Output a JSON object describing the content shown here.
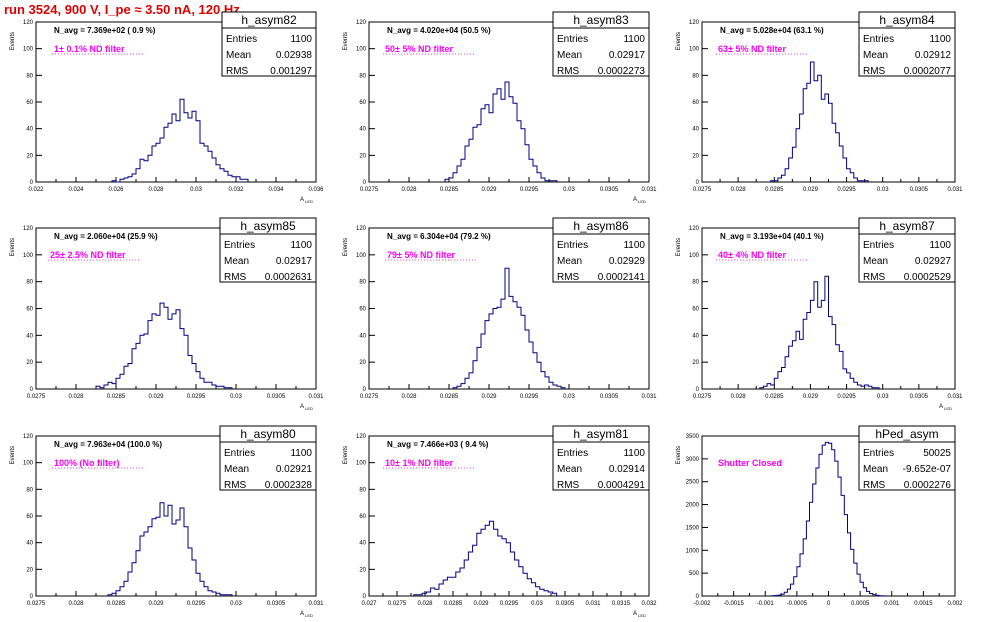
{
  "header": {
    "title": "run 3524,   900 V, I_pe ≈ 3.50 nA, 120 Hz"
  },
  "colors": {
    "title": "#e00000",
    "annotation": "#ff00ff",
    "histogram": "#000080",
    "axis": "#000000"
  },
  "chart_data": [
    {
      "type": "bar",
      "name": "h_asym82",
      "title": "h_asym82",
      "stats": {
        "entries": "1100",
        "mean": "0.02938",
        "rms": "0.001297"
      },
      "navg": "N_avg = 7.369e+02 ( 0.9 %)",
      "annotation": "1± 0.1% ND filter",
      "xlabel": "A_{LED}",
      "ylabel": "Events",
      "xlim": [
        0.022,
        0.036
      ],
      "ylim": [
        0,
        120
      ],
      "xticks": [
        "0.022",
        "0.024",
        "0.026",
        "0.028",
        "0.03",
        "0.032",
        "0.034",
        "0.036"
      ],
      "yticks": [
        "0",
        "20",
        "40",
        "60",
        "80",
        "100",
        "120"
      ],
      "bin_edges": [
        0.0258,
        0.0326
      ],
      "values": [
        1,
        0,
        2,
        3,
        4,
        6,
        10,
        17,
        16,
        20,
        27,
        29,
        33,
        41,
        44,
        51,
        46,
        62,
        52,
        48,
        53,
        46,
        29,
        27,
        23,
        18,
        13,
        10,
        8,
        5,
        4,
        4,
        2,
        2
      ]
    },
    {
      "type": "bar",
      "name": "h_asym83",
      "title": "h_asym83",
      "stats": {
        "entries": "1100",
        "mean": "0.02917",
        "rms": "0.0002273"
      },
      "navg": "N_avg = 4.020e+04 (50.5 %)",
      "annotation": "50± 5% ND filter",
      "xlabel": "A_{LED}",
      "ylabel": "Events",
      "xlim": [
        0.0275,
        0.031
      ],
      "ylim": [
        0,
        120
      ],
      "xticks": [
        "0.0275",
        "0.028",
        "0.0285",
        "0.029",
        "0.0295",
        "0.03",
        "0.0305",
        "0.031"
      ],
      "yticks": [
        "0",
        "20",
        "40",
        "60",
        "80",
        "100",
        "120"
      ],
      "bin_edges": [
        0.02845,
        0.02985
      ],
      "values": [
        2,
        3,
        7,
        12,
        17,
        27,
        32,
        41,
        43,
        55,
        58,
        52,
        66,
        70,
        62,
        75,
        64,
        59,
        46,
        40,
        28,
        17,
        12,
        7,
        3,
        1,
        1,
        1
      ]
    },
    {
      "type": "bar",
      "name": "h_asym84",
      "title": "h_asym84",
      "stats": {
        "entries": "1100",
        "mean": "0.02912",
        "rms": "0.0002077"
      },
      "navg": "N_avg = 5.028e+04 (63.1 %)",
      "annotation": "63± 5% ND filter",
      "xlabel": "",
      "ylabel": "Events",
      "xlim": [
        0.0275,
        0.031
      ],
      "ylim": [
        0,
        120
      ],
      "xticks": [
        "0.0275",
        "0.028",
        "0.0285",
        "0.029",
        "0.0295",
        "0.03",
        "0.0305",
        "0.031"
      ],
      "yticks": [
        "0",
        "20",
        "40",
        "60",
        "80",
        "100",
        "120"
      ],
      "bin_edges": [
        0.02845,
        0.0298
      ],
      "values": [
        1,
        1,
        3,
        5,
        10,
        18,
        26,
        40,
        51,
        70,
        74,
        90,
        76,
        80,
        62,
        66,
        59,
        44,
        37,
        27,
        18,
        10,
        7,
        3,
        1,
        1,
        1
      ]
    },
    {
      "type": "bar",
      "name": "h_asym85",
      "title": "h_asym85",
      "stats": {
        "entries": "1100",
        "mean": "0.02917",
        "rms": "0.0002631"
      },
      "navg": "N_avg = 2.060e+04 (25.9 %)",
      "annotation": "25± 2.5% ND filter",
      "xlabel": "A_{LED}",
      "ylabel": "Events",
      "xlim": [
        0.0275,
        0.031
      ],
      "ylim": [
        0,
        120
      ],
      "xticks": [
        "0.0275",
        "0.028",
        "0.0285",
        "0.029",
        "0.0295",
        "0.03",
        "0.0305",
        "0.031"
      ],
      "yticks": [
        "0",
        "20",
        "40",
        "60",
        "80",
        "100",
        "120"
      ],
      "bin_edges": [
        0.02825,
        0.02995
      ],
      "values": [
        2,
        1,
        3,
        5,
        4,
        8,
        11,
        17,
        19,
        30,
        34,
        40,
        41,
        51,
        56,
        55,
        64,
        61,
        52,
        56,
        59,
        45,
        40,
        25,
        19,
        13,
        8,
        5,
        5,
        3,
        2,
        2,
        1,
        1
      ]
    },
    {
      "type": "bar",
      "name": "h_asym86",
      "title": "h_asym86",
      "stats": {
        "entries": "1100",
        "mean": "0.02929",
        "rms": "0.0002141"
      },
      "navg": "N_avg = 6.304e+04 (79.2 %)",
      "annotation": "79± 5% ND filter",
      "xlabel": "",
      "ylabel": "Events",
      "xlim": [
        0.0275,
        0.031
      ],
      "ylim": [
        0,
        120
      ],
      "xticks": [
        "0.0275",
        "0.028",
        "0.0285",
        "0.029",
        "0.0295",
        "0.03",
        "0.0305",
        "0.031"
      ],
      "yticks": [
        "0",
        "20",
        "40",
        "60",
        "80",
        "100",
        "120"
      ],
      "bin_edges": [
        0.02855,
        0.02995
      ],
      "values": [
        1,
        2,
        4,
        8,
        12,
        21,
        31,
        41,
        51,
        56,
        60,
        61,
        67,
        90,
        69,
        65,
        61,
        55,
        44,
        35,
        27,
        20,
        13,
        9,
        5,
        3,
        2,
        1
      ]
    },
    {
      "type": "bar",
      "name": "h_asym87",
      "title": "h_asym87",
      "stats": {
        "entries": "1100",
        "mean": "0.02927",
        "rms": "0.0002529"
      },
      "navg": "N_avg = 3.193e+04 (40.1 %)",
      "annotation": "40± 4% ND filter",
      "xlabel": "A_{LED}",
      "ylabel": "Events",
      "xlim": [
        0.0275,
        0.031
      ],
      "ylim": [
        0,
        120
      ],
      "xticks": [
        "0.0275",
        "0.028",
        "0.0285",
        "0.029",
        "0.0295",
        "0.03",
        "0.0305",
        "0.031"
      ],
      "yticks": [
        "0",
        "20",
        "40",
        "60",
        "80",
        "100",
        "120"
      ],
      "bin_edges": [
        0.0283,
        0.02995
      ],
      "values": [
        1,
        2,
        4,
        3,
        8,
        13,
        16,
        24,
        32,
        36,
        43,
        37,
        52,
        57,
        66,
        80,
        61,
        66,
        84,
        54,
        48,
        33,
        28,
        15,
        12,
        8,
        5,
        3,
        2,
        3,
        2,
        1,
        1
      ]
    },
    {
      "type": "bar",
      "name": "h_asym80",
      "title": "h_asym80",
      "stats": {
        "entries": "1100",
        "mean": "0.02921",
        "rms": "0.0002328"
      },
      "navg": "N_avg = 7.963e+04 (100.0 %)",
      "annotation": "100% (No filter)",
      "xlabel": "A_{LED}",
      "ylabel": "Events",
      "xlim": [
        0.0275,
        0.031
      ],
      "ylim": [
        0,
        120
      ],
      "xticks": [
        "0.0275",
        "0.028",
        "0.0285",
        "0.029",
        "0.0295",
        "0.03",
        "0.0305",
        "0.031"
      ],
      "yticks": [
        "0",
        "20",
        "40",
        "60",
        "80",
        "100",
        "120"
      ],
      "bin_edges": [
        0.0284,
        0.02995
      ],
      "values": [
        1,
        2,
        4,
        7,
        11,
        18,
        25,
        34,
        45,
        48,
        52,
        58,
        59,
        70,
        60,
        68,
        54,
        57,
        66,
        52,
        36,
        27,
        17,
        11,
        7,
        4,
        3,
        2,
        1,
        1,
        1
      ]
    },
    {
      "type": "bar",
      "name": "h_asym81",
      "title": "h_asym81",
      "stats": {
        "entries": "1100",
        "mean": "0.02914",
        "rms": "0.0004291"
      },
      "navg": "N_avg = 7.466e+03 ( 9.4 %)",
      "annotation": "10± 1% ND filter",
      "xlabel": "A_{LED}",
      "ylabel": "Events",
      "xlim": [
        0.027,
        0.032
      ],
      "ylim": [
        0,
        120
      ],
      "xticks": [
        "0.027",
        "0.0275",
        "0.028",
        "0.0285",
        "0.029",
        "0.0295",
        "0.03",
        "0.0305",
        "0.031",
        "0.0315",
        "0.032"
      ],
      "yticks": [
        "0",
        "20",
        "40",
        "60",
        "80",
        "100",
        "120"
      ],
      "bin_edges": [
        0.0278,
        0.03035
      ],
      "values": [
        1,
        1,
        2,
        3,
        6,
        5,
        9,
        12,
        14,
        14,
        18,
        21,
        27,
        33,
        38,
        47,
        50,
        53,
        56,
        50,
        45,
        43,
        40,
        33,
        27,
        22,
        17,
        13,
        10,
        7,
        5,
        4,
        3,
        2
      ]
    },
    {
      "type": "bar",
      "name": "hPed_asym",
      "title": "hPed_asym",
      "stats": {
        "entries": "50025",
        "mean": "-9.652e-07",
        "rms": "0.0002276"
      },
      "navg": "",
      "annotation": "Shutter Closed",
      "xlabel": "",
      "ylabel": "Events",
      "xlim": [
        -0.002,
        0.002
      ],
      "ylim": [
        0,
        3500
      ],
      "xticks": [
        "-0.002",
        "-0.0015",
        "-0.001",
        "-0.0005",
        "0",
        "0.0005",
        "0.001",
        "0.0015",
        "0.002"
      ],
      "yticks": [
        "0",
        "500",
        "1000",
        "1500",
        "2000",
        "2500",
        "3000",
        "3500"
      ],
      "bin_edges": [
        -0.0009,
        0.0009
      ],
      "values": [
        5,
        10,
        20,
        40,
        80,
        150,
        260,
        420,
        640,
        920,
        1250,
        1640,
        2050,
        2450,
        2800,
        3100,
        3300,
        3360,
        3340,
        3200,
        2950,
        2600,
        2200,
        1780,
        1380,
        1020,
        720,
        480,
        300,
        180,
        100,
        55,
        28,
        14,
        6,
        3
      ]
    }
  ]
}
